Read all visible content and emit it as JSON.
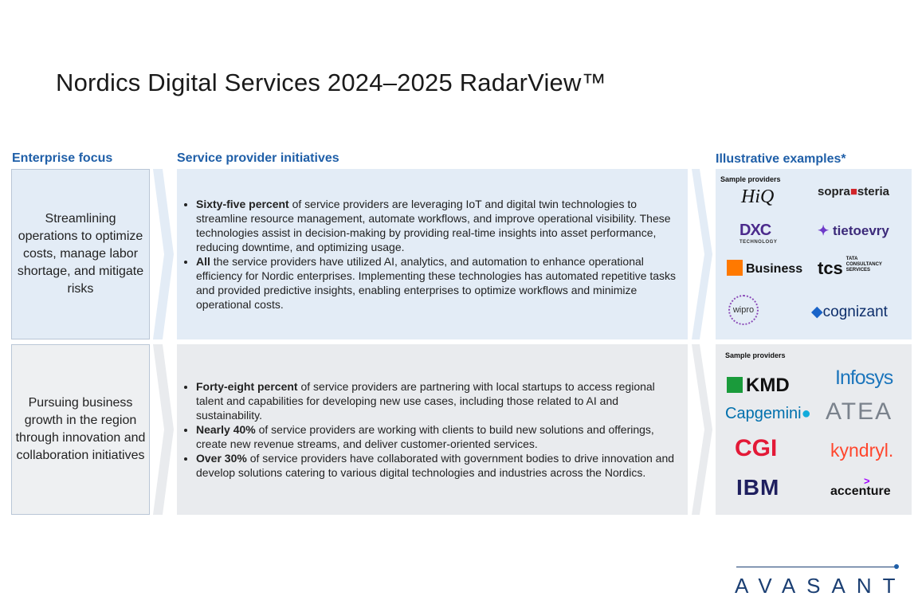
{
  "title": "Nordics Digital Services 2024–2025 RadarView™",
  "headers": {
    "focus": "Enterprise focus",
    "initiatives": "Service provider initiatives",
    "examples": "Illustrative examples*"
  },
  "rows": [
    {
      "focus": "Streamlining operations to optimize costs, manage labor shortage, and mitigate risks",
      "bullets": [
        {
          "bold": "Sixty-five percent",
          "text": " of service providers are leveraging IoT and digital twin technologies to streamline resource management, automate workflows, and improve operational visibility. These technologies assist in decision-making by providing real-time insights into asset performance, reducing downtime, and optimizing usage."
        },
        {
          "bold": "All",
          "text": " the service providers have utilized AI, analytics, and automation to enhance operational efficiency for Nordic enterprises. Implementing these technologies has automated repetitive tasks and provided predictive insights, enabling enterprises to optimize workflows and minimize operational costs."
        }
      ],
      "sample_label": "Sample providers",
      "logos": [
        "HiQ",
        "sopra steria",
        "DXC TECHNOLOGY",
        "tietoevry",
        "Business",
        "tcs TATA CONSULTANCY SERVICES",
        "wipro",
        "cognizant"
      ]
    },
    {
      "focus": "Pursuing business growth in the region through innovation and collaboration initiatives",
      "bullets": [
        {
          "bold": "Forty-eight percent",
          "text": " of service providers are partnering with local startups to access regional talent and capabilities for developing new use cases, including those related to AI and sustainability."
        },
        {
          "bold": "Nearly 40%",
          "text": " of service providers are working with clients to build new solutions and offerings, create new revenue streams, and deliver customer-oriented services."
        },
        {
          "bold": "Over 30%",
          "text": " of service providers have collaborated with government bodies to drive innovation and develop solutions catering to various digital technologies and industries across the Nordics."
        }
      ],
      "sample_label": "Sample providers",
      "logos": [
        "KMD",
        "Infosys",
        "Capgemini",
        "ATEA",
        "CGI",
        "kyndryl.",
        "IBM",
        "accenture"
      ]
    }
  ],
  "footer": "AVASANT",
  "colors": {
    "heading": "#1f5fa8",
    "row1_bg": "#e3ecf6",
    "row2_bg": "#e9ebee",
    "brand": "#1b3f73"
  }
}
